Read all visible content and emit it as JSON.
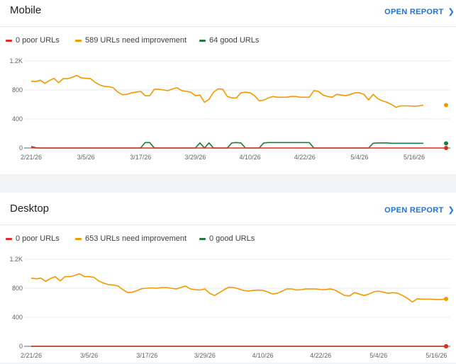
{
  "cards": [
    {
      "id": "mobile",
      "title": "Mobile",
      "open_report_label": "OPEN REPORT",
      "legend": [
        {
          "label": "0 poor URLs",
          "color": "#d93025"
        },
        {
          "label": "589 URLs need improvement",
          "color": "#f29900"
        },
        {
          "label": "64 good URLs",
          "color": "#188038"
        }
      ]
    },
    {
      "id": "desktop",
      "title": "Desktop",
      "open_report_label": "OPEN REPORT",
      "legend": [
        {
          "label": "0 poor URLs",
          "color": "#d93025"
        },
        {
          "label": "653 URLs need improvement",
          "color": "#f29900"
        },
        {
          "label": "0 good URLs",
          "color": "#188038"
        }
      ]
    }
  ],
  "chart_data": [
    {
      "type": "line",
      "title": "",
      "xlabel": "",
      "ylabel": "",
      "ylim": [
        0,
        1200
      ],
      "y_ticks": [
        "0",
        "400",
        "800",
        "1.2K"
      ],
      "x_tick_labels": [
        "2/21/26",
        "3/5/26",
        "3/17/26",
        "3/29/26",
        "4/10/26",
        "4/22/26",
        "5/4/26",
        "5/16/26"
      ],
      "x_tick_index": [
        0,
        12,
        24,
        36,
        48,
        60,
        72,
        84
      ],
      "series": [
        {
          "name": "0 poor URLs",
          "color": "#d93025",
          "values": [
            5,
            0,
            0,
            0,
            0,
            0,
            0,
            0,
            0,
            0,
            0,
            0,
            0,
            0,
            0,
            0,
            0,
            0,
            0,
            0,
            0,
            0,
            0,
            0,
            0,
            0,
            0,
            0,
            0,
            0,
            0,
            0,
            0,
            0,
            0,
            0,
            0,
            0,
            0,
            0,
            0,
            0,
            0,
            0,
            0,
            0,
            0,
            0,
            0,
            0,
            0,
            0,
            0,
            0,
            0,
            0,
            0,
            0,
            0,
            0,
            0,
            0,
            0,
            0,
            0,
            0,
            0,
            0,
            0,
            0,
            0,
            0,
            0,
            0,
            0,
            0,
            0,
            0,
            0,
            0,
            0,
            0,
            0,
            0,
            0,
            0,
            0,
            0,
            0,
            0,
            0,
            0
          ]
        },
        {
          "name": "589 URLs need improvement",
          "color": "#f29900",
          "values": [
            920,
            915,
            935,
            890,
            930,
            960,
            900,
            955,
            955,
            975,
            1000,
            965,
            960,
            955,
            905,
            870,
            850,
            845,
            830,
            770,
            735,
            740,
            760,
            770,
            780,
            720,
            720,
            810,
            810,
            800,
            790,
            815,
            830,
            790,
            780,
            770,
            720,
            730,
            630,
            670,
            770,
            815,
            810,
            710,
            690,
            690,
            760,
            770,
            760,
            720,
            650,
            660,
            690,
            710,
            700,
            700,
            700,
            710,
            710,
            700,
            700,
            700,
            790,
            780,
            730,
            710,
            700,
            740,
            730,
            720,
            740,
            760,
            760,
            740,
            660,
            740,
            680,
            650,
            630,
            600,
            560,
            580,
            580,
            580,
            575,
            580,
            590
          ]
        },
        {
          "name": "64 good URLs",
          "color": "#188038",
          "values": [
            20,
            5,
            0,
            0,
            0,
            0,
            0,
            0,
            0,
            0,
            0,
            0,
            0,
            0,
            0,
            0,
            0,
            0,
            0,
            0,
            0,
            0,
            0,
            0,
            0,
            75,
            75,
            0,
            0,
            0,
            0,
            0,
            0,
            0,
            0,
            0,
            0,
            70,
            0,
            70,
            0,
            0,
            0,
            0,
            70,
            75,
            70,
            0,
            0,
            0,
            0,
            70,
            75,
            75,
            75,
            75,
            75,
            75,
            75,
            75,
            75,
            75,
            0,
            0,
            0,
            0,
            0,
            0,
            0,
            0,
            0,
            0,
            0,
            0,
            0,
            65,
            70,
            70,
            70,
            65,
            65,
            65,
            65,
            65,
            65,
            65,
            64
          ]
        }
      ]
    },
    {
      "type": "line",
      "title": "",
      "xlabel": "",
      "ylabel": "",
      "ylim": [
        0,
        1200
      ],
      "y_ticks": [
        "0",
        "400",
        "800",
        "1.2K"
      ],
      "x_tick_labels": [
        "2/21/26",
        "3/5/26",
        "3/17/26",
        "3/29/26",
        "4/10/26",
        "4/22/26",
        "5/4/26",
        "5/16/26"
      ],
      "x_tick_index": [
        0,
        12,
        24,
        36,
        48,
        60,
        72,
        84
      ],
      "series": [
        {
          "name": "0 poor URLs",
          "color": "#d93025",
          "values": [
            0,
            0,
            0,
            0,
            0,
            0,
            0,
            0,
            0,
            0,
            0,
            0,
            0,
            0,
            0,
            0,
            0,
            0,
            0,
            0,
            0,
            0,
            0,
            0,
            0,
            0,
            0,
            0,
            0,
            0,
            0,
            0,
            0,
            0,
            0,
            0,
            0,
            0,
            0,
            0,
            0,
            0,
            0,
            0,
            0,
            0,
            0,
            0,
            0,
            0,
            0,
            0,
            0,
            0,
            0,
            0,
            0,
            0,
            0,
            0,
            0,
            0,
            0,
            0,
            0,
            0,
            0,
            0,
            0,
            0,
            0,
            0,
            0,
            0,
            0,
            0,
            0,
            0,
            0,
            0,
            0,
            0,
            0,
            0,
            0,
            0,
            0
          ]
        },
        {
          "name": "653 URLs need improvement",
          "color": "#f29900",
          "values": [
            940,
            930,
            940,
            895,
            935,
            960,
            900,
            960,
            960,
            975,
            1000,
            960,
            960,
            950,
            900,
            870,
            850,
            845,
            830,
            780,
            740,
            745,
            770,
            795,
            800,
            805,
            800,
            810,
            810,
            800,
            790,
            810,
            830,
            790,
            780,
            775,
            790,
            730,
            700,
            740,
            780,
            815,
            810,
            790,
            770,
            760,
            770,
            775,
            770,
            750,
            720,
            730,
            760,
            790,
            790,
            775,
            780,
            790,
            790,
            790,
            780,
            780,
            790,
            775,
            735,
            700,
            695,
            740,
            720,
            700,
            720,
            750,
            760,
            745,
            730,
            740,
            730,
            700,
            660,
            610,
            655,
            650,
            650,
            650,
            645,
            645,
            653
          ]
        },
        {
          "name": "0 good URLs",
          "color": "#188038",
          "values": [
            0,
            0,
            0,
            0,
            0,
            0,
            0,
            0,
            0,
            0,
            0,
            0,
            0,
            0,
            0,
            0,
            0,
            0,
            0,
            0,
            0,
            0,
            0,
            0,
            0,
            0,
            0,
            0,
            0,
            0,
            0,
            0,
            0,
            0,
            0,
            0,
            0,
            0,
            0,
            0,
            0,
            0,
            0,
            0,
            0,
            0,
            0,
            0,
            0,
            0,
            0,
            0,
            0,
            0,
            0,
            0,
            0,
            0,
            0,
            0,
            0,
            0,
            0,
            0,
            0,
            0,
            0,
            0,
            0,
            0,
            0,
            0,
            0,
            0,
            0,
            0,
            0,
            0,
            0,
            0,
            0,
            0,
            0,
            0,
            0,
            0,
            0
          ]
        }
      ]
    }
  ]
}
